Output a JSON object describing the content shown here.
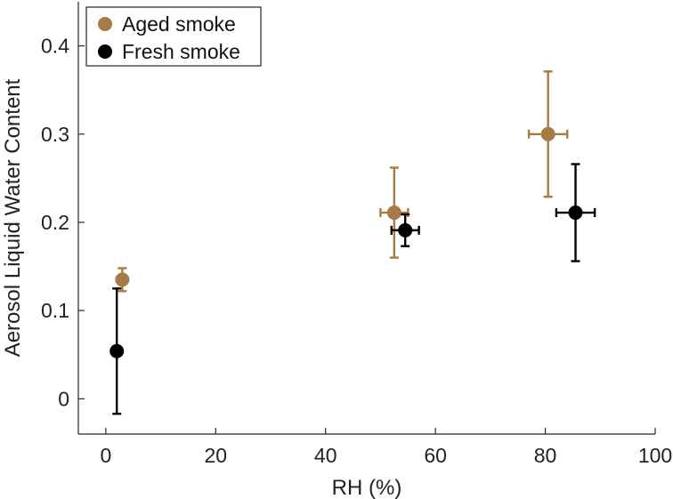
{
  "chart_data": {
    "type": "scatter",
    "title": "",
    "xlabel": "RH (%)",
    "ylabel": "Aerosol Liquid Water Content",
    "xlim": [
      -5,
      100
    ],
    "ylim": [
      -0.04,
      0.45
    ],
    "xticks": [
      0,
      20,
      40,
      60,
      80,
      100
    ],
    "yticks": [
      0,
      0.1,
      0.2,
      0.3,
      0.4
    ],
    "xtick_labels": [
      "0",
      "20",
      "40",
      "60",
      "80",
      "100"
    ],
    "ytick_labels": [
      "0",
      "0.1",
      "0.2",
      "0.3",
      "0.4"
    ],
    "grid": false,
    "legend_position": "top-left",
    "series": [
      {
        "name": "Aged smoke",
        "color": "#a87a45",
        "points": [
          {
            "x": 3.0,
            "y": 0.135,
            "xerr": 0.0,
            "yerr_low": 0.013,
            "yerr_high": 0.013
          },
          {
            "x": 52.5,
            "y": 0.211,
            "xerr": 2.5,
            "yerr_low": 0.051,
            "yerr_high": 0.051
          },
          {
            "x": 80.5,
            "y": 0.3,
            "xerr": 3.5,
            "yerr_low": 0.071,
            "yerr_high": 0.071
          }
        ]
      },
      {
        "name": "Fresh smoke",
        "color": "#000000",
        "points": [
          {
            "x": 2.0,
            "y": 0.054,
            "xerr": 0.0,
            "yerr_low": 0.071,
            "yerr_high": 0.071
          },
          {
            "x": 54.5,
            "y": 0.191,
            "xerr": 2.5,
            "yerr_low": 0.018,
            "yerr_high": 0.018
          },
          {
            "x": 85.5,
            "y": 0.211,
            "xerr": 3.5,
            "yerr_low": 0.055,
            "yerr_high": 0.055
          }
        ]
      }
    ]
  }
}
